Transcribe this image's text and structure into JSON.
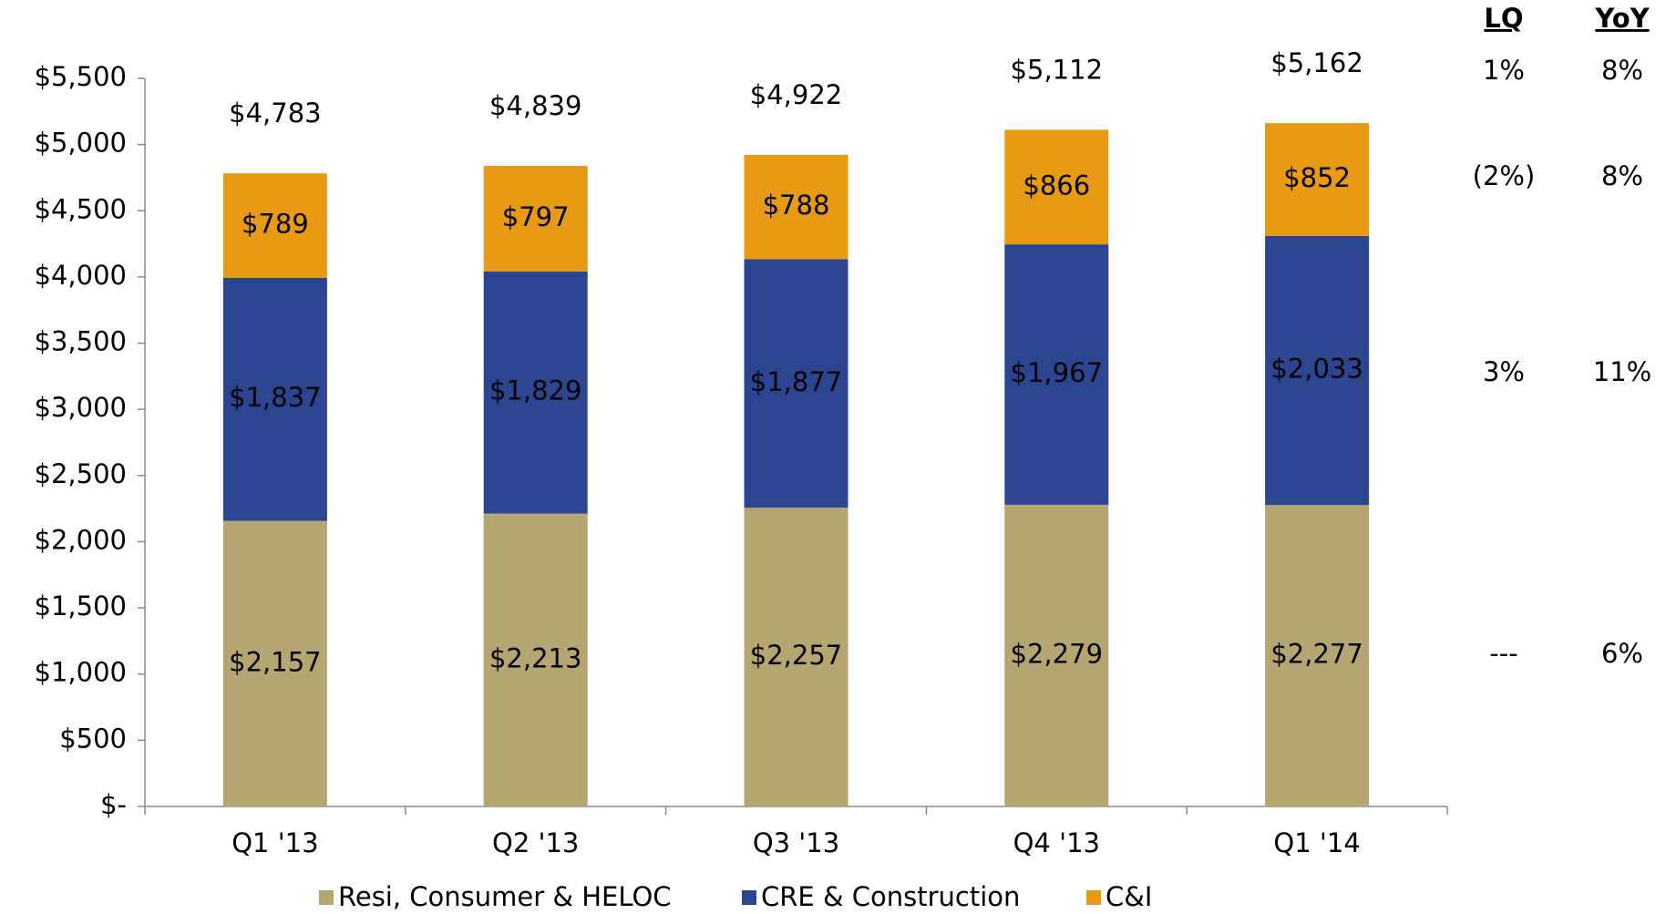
{
  "chart_data": {
    "type": "stacked_bar",
    "categories": [
      "Q1 '13",
      "Q2 '13",
      "Q3 '13",
      "Q4 '13",
      "Q1 '14"
    ],
    "series": [
      {
        "name": "Resi, Consumer & HELOC",
        "color": "#b5a570",
        "values": [
          2157,
          2213,
          2257,
          2279,
          2277
        ],
        "value_labels": [
          "$2,157",
          "$2,213",
          "$2,257",
          "$2,279",
          "$2,277"
        ]
      },
      {
        "name": "CRE & Construction",
        "color": "#2b4590",
        "values": [
          1837,
          1829,
          1877,
          1967,
          2033
        ],
        "value_labels": [
          "$1,837",
          "$1,829",
          "$1,877",
          "$1,967",
          "$2,033"
        ]
      },
      {
        "name": "C&I",
        "color": "#e89a14",
        "values": [
          789,
          797,
          788,
          866,
          852
        ],
        "value_labels": [
          "$789",
          "$797",
          "$788",
          "$866",
          "$852"
        ]
      }
    ],
    "totals": {
      "values": [
        4783,
        4839,
        4922,
        5112,
        5162
      ],
      "value_labels": [
        "$4,783",
        "$4,839",
        "$4,922",
        "$5,112",
        "$5,162"
      ]
    },
    "ylim": [
      0,
      5500
    ],
    "yticks": [
      {
        "value": 0,
        "label": "$-"
      },
      {
        "value": 500,
        "label": "$500"
      },
      {
        "value": 1000,
        "label": "$1,000"
      },
      {
        "value": 1500,
        "label": "$1,500"
      },
      {
        "value": 2000,
        "label": "$2,000"
      },
      {
        "value": 2500,
        "label": "$2,500"
      },
      {
        "value": 3000,
        "label": "$3,000"
      },
      {
        "value": 3500,
        "label": "$3,500"
      },
      {
        "value": 4000,
        "label": "$4,000"
      },
      {
        "value": 4500,
        "label": "$4,500"
      },
      {
        "value": 5000,
        "label": "$5,000"
      },
      {
        "value": 5500,
        "label": "$5,500"
      }
    ],
    "legend": "bottom"
  },
  "table": {
    "headers": [
      "LQ",
      "YoY"
    ],
    "rows": [
      [
        "1%",
        "8%"
      ],
      [
        "(2%)",
        "8%"
      ],
      [
        "3%",
        "11%"
      ],
      [
        "---",
        "6%"
      ]
    ]
  }
}
